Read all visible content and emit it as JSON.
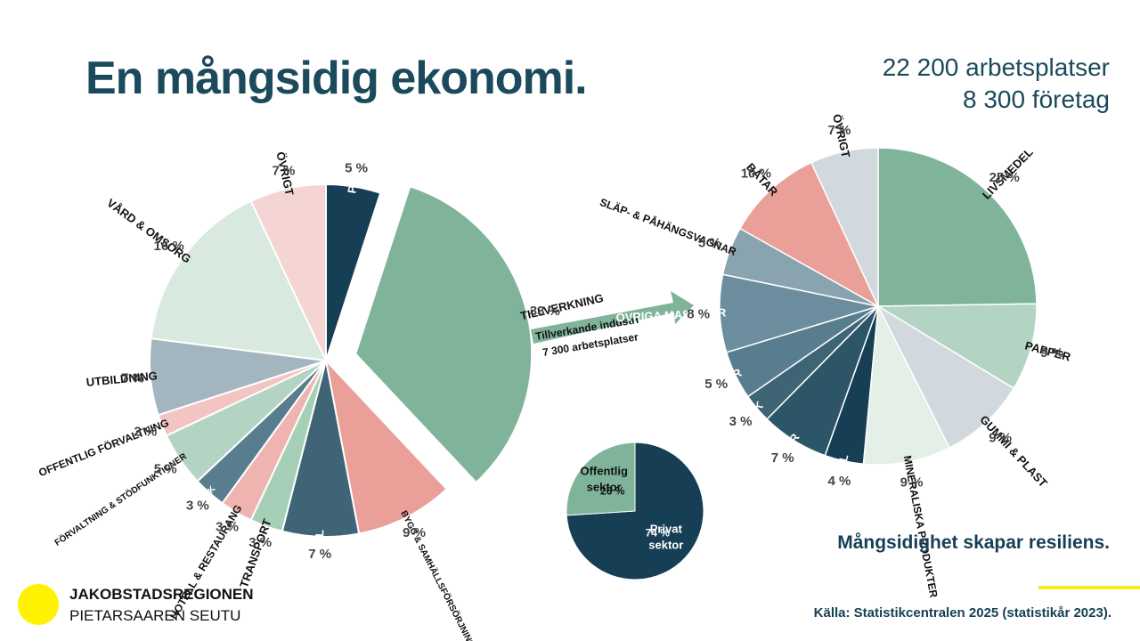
{
  "header": {
    "title": "En mångsidig ekonomi.",
    "jobs": "22 200 arbetsplatser",
    "companies": "8 300 företag"
  },
  "tagline": "Mångsidighet skapar resiliens.",
  "source": "Källa: Statistikcentralen 2025 (statistikår 2023).",
  "logo": {
    "line1": "JAKOBSTADSREGIONEN",
    "line2": "PIETARSAAREN SEUTU"
  },
  "arrow": {
    "line1": "Tillverkande industri",
    "line2": "7 300 arbetsplatser"
  },
  "chart_data": [
    {
      "type": "pie",
      "unit": "%",
      "slices": [
        {
          "label": "PRIMÄRNÄRINGAR",
          "value": 5,
          "color": "#163f55"
        },
        {
          "label": "TILLVERKNING",
          "value": 33,
          "color": "#80b49a",
          "exploded": true
        },
        {
          "label": "BYGG & SAMHÄLLSFÖRSÖRJNING",
          "value": 9,
          "color": "#ea9f99"
        },
        {
          "label": "HANDEL",
          "value": 7,
          "color": "#3e6476"
        },
        {
          "label": "TRANSPORT",
          "value": 3,
          "color": "#a6cfb7"
        },
        {
          "label": "HOTELL & RESTAURANG",
          "value": 3,
          "color": "#f0b4b0"
        },
        {
          "label": "JURIDIK, EKONOMI, VETENSKAP & TEKNIK",
          "value": 3,
          "color": "#587d8e"
        },
        {
          "label": "FÖRVALTNING & STÖDFUNKTIONER",
          "value": 5,
          "color": "#b3d4c3"
        },
        {
          "label": "OFFENTLIG FÖRVALTNING",
          "value": 2,
          "color": "#f3c4c1"
        },
        {
          "label": "UTBILDNING",
          "value": 7,
          "color": "#a3b6bf"
        },
        {
          "label": "VÅRD & OMSORG",
          "value": 16,
          "color": "#d8e9df"
        },
        {
          "label": "ÖVRIGT",
          "value": 7,
          "color": "#f4d5d3"
        }
      ]
    },
    {
      "type": "pie",
      "unit": "%",
      "slices": [
        {
          "label": "LIVSMEDEL",
          "value": 25,
          "color": "#80b49a"
        },
        {
          "label": "PAPPER",
          "value": 9,
          "color": "#b3d4c3"
        },
        {
          "label": "GUMMI & PLAST",
          "value": 9,
          "color": "#d1d8de"
        },
        {
          "label": "MINERALISKA PRODUKTER",
          "value": 9,
          "color": "#e3efe7"
        },
        {
          "label": "STÅL & METALL",
          "value": 4,
          "color": "#163f55"
        },
        {
          "label": "METALLVAROR",
          "value": 7,
          "color": "#2c5568"
        },
        {
          "label": "ELEKTRONIK",
          "value": 3,
          "color": "#3f6475"
        },
        {
          "label": "ELAPPARATUR",
          "value": 5,
          "color": "#587d8e"
        },
        {
          "label": "ÖVRIGA MASKINER",
          "value": 8,
          "color": "#6b8d9d"
        },
        {
          "label": "SLÄP- & PÅHÄNGSVAGNAR",
          "value": 5,
          "color": "#8aa3b0"
        },
        {
          "label": "BÅTAR",
          "value": 10,
          "color": "#ea9f99"
        },
        {
          "label": "ÖVRIGT",
          "value": 7,
          "color": "#d1d8de"
        }
      ]
    },
    {
      "type": "pie",
      "unit": "%",
      "slices": [
        {
          "label": "Privat sektor",
          "value": 74,
          "color": "#163f55"
        },
        {
          "label": "Offentlig sektor",
          "value": 26,
          "color": "#80b49a"
        }
      ]
    }
  ]
}
